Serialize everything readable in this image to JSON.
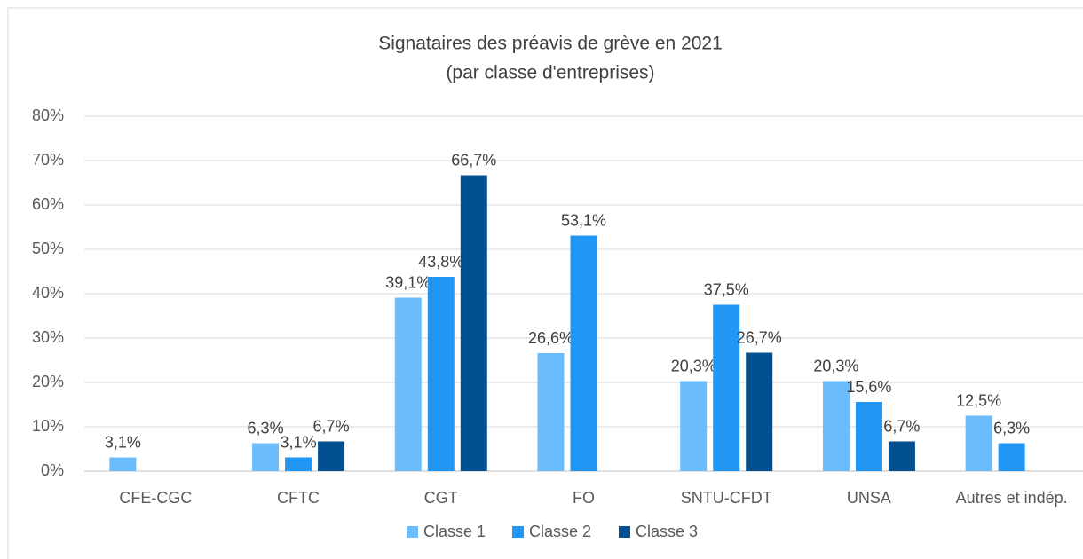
{
  "chart_data": {
    "type": "bar",
    "title": "Signataires des préavis de grève en 2021",
    "subtitle": "(par classe d'entreprises)",
    "categories": [
      "CFE-CGC",
      "CFTC",
      "CGT",
      "FO",
      "SNTU-CFDT",
      "UNSA",
      "Autres et indép."
    ],
    "series": [
      {
        "name": "Classe 1",
        "color": "#6bbcfc",
        "values": [
          3.1,
          6.3,
          39.1,
          26.6,
          20.3,
          20.3,
          12.5
        ],
        "value_labels": [
          "3,1%",
          "6,3%",
          "39,1%",
          "26,6%",
          "20,3%",
          "20,3%",
          "12,5%"
        ]
      },
      {
        "name": "Classe 2",
        "color": "#2196f3",
        "values": [
          null,
          3.1,
          43.8,
          53.1,
          37.5,
          15.6,
          6.3
        ],
        "value_labels": [
          null,
          "3,1%",
          "43,8%",
          "53,1%",
          "37,5%",
          "15,6%",
          "6,3%"
        ]
      },
      {
        "name": "Classe 3",
        "color": "#02508f",
        "values": [
          null,
          6.7,
          66.7,
          null,
          26.7,
          6.7,
          null
        ],
        "value_labels": [
          null,
          "6,7%",
          "66,7%",
          null,
          "26,7%",
          "6,7%",
          null
        ]
      }
    ],
    "ylim": [
      0,
      80
    ],
    "yticks": [
      {
        "value": 0,
        "label": "0%"
      },
      {
        "value": 10,
        "label": "10%"
      },
      {
        "value": 20,
        "label": "20%"
      },
      {
        "value": 30,
        "label": "30%"
      },
      {
        "value": 40,
        "label": "40%"
      },
      {
        "value": 50,
        "label": "50%"
      },
      {
        "value": 60,
        "label": "60%"
      },
      {
        "value": 70,
        "label": "70%"
      },
      {
        "value": 80,
        "label": "80%"
      }
    ],
    "grid": true,
    "legend": "bottom"
  }
}
